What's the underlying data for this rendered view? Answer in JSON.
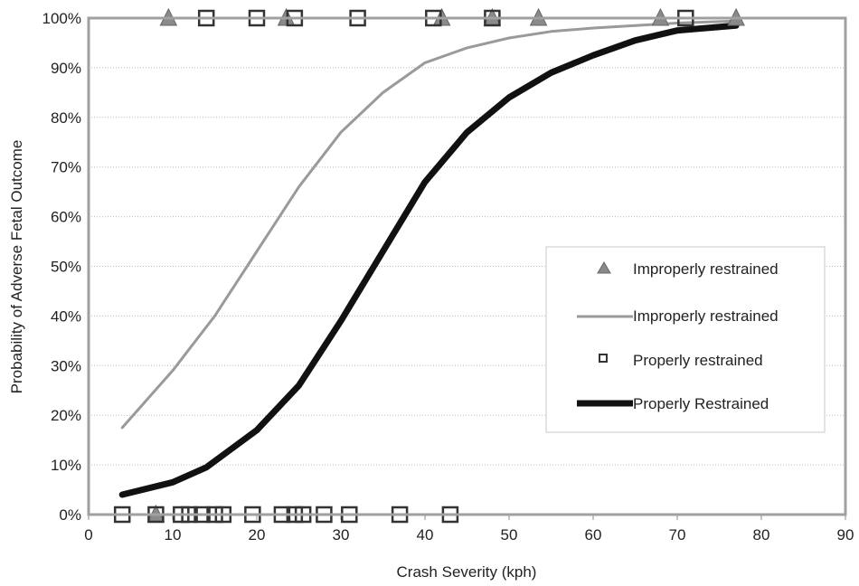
{
  "chart_data": {
    "type": "line",
    "title": "",
    "xlabel": "Crash Severity (kph)",
    "ylabel": "Probability of Adverse Fetal Outcome",
    "xlim": [
      0,
      90
    ],
    "ylim": [
      0,
      100
    ],
    "x_ticks": [
      0,
      10,
      20,
      30,
      40,
      50,
      60,
      70,
      80,
      90
    ],
    "y_ticks": [
      0,
      10,
      20,
      30,
      40,
      50,
      60,
      70,
      80,
      90,
      100
    ],
    "x_tick_labels": [
      "0",
      "10",
      "20",
      "30",
      "40",
      "50",
      "60",
      "70",
      "80",
      "90"
    ],
    "y_tick_labels": [
      "0%",
      "10%",
      "20%",
      "30%",
      "40%",
      "50%",
      "60%",
      "70%",
      "80%",
      "90%",
      "100%"
    ],
    "grid": "horizontal dotted",
    "legend_position": "right",
    "colors": {
      "improper_marker": "#8a8a8a",
      "improper_line": "#9a9a9a",
      "proper_marker": "#333333",
      "proper_line": "#111111",
      "plot_border": "#a0a0a0"
    },
    "series": [
      {
        "name": "Improperly restrained",
        "kind": "scatter",
        "marker": "triangle",
        "points": [
          {
            "x": 9.5,
            "y": 100
          },
          {
            "x": 23.5,
            "y": 100
          },
          {
            "x": 42,
            "y": 100
          },
          {
            "x": 48,
            "y": 100
          },
          {
            "x": 53.5,
            "y": 100
          },
          {
            "x": 68,
            "y": 100
          },
          {
            "x": 77,
            "y": 100
          },
          {
            "x": 8,
            "y": 0
          }
        ]
      },
      {
        "name": "Improperly restrained",
        "kind": "line",
        "points": [
          {
            "x": 4,
            "y": 17.5
          },
          {
            "x": 10,
            "y": 29
          },
          {
            "x": 15,
            "y": 40
          },
          {
            "x": 20,
            "y": 53
          },
          {
            "x": 25,
            "y": 66
          },
          {
            "x": 30,
            "y": 77
          },
          {
            "x": 35,
            "y": 85
          },
          {
            "x": 40,
            "y": 91
          },
          {
            "x": 45,
            "y": 94
          },
          {
            "x": 50,
            "y": 96
          },
          {
            "x": 55,
            "y": 97.3
          },
          {
            "x": 60,
            "y": 98
          },
          {
            "x": 65,
            "y": 98.5
          },
          {
            "x": 70,
            "y": 99
          },
          {
            "x": 77,
            "y": 99.4
          }
        ]
      },
      {
        "name": "Properly restrained",
        "kind": "scatter",
        "marker": "square",
        "points": [
          {
            "x": 14,
            "y": 100
          },
          {
            "x": 20,
            "y": 100
          },
          {
            "x": 24.5,
            "y": 100
          },
          {
            "x": 32,
            "y": 100
          },
          {
            "x": 41,
            "y": 100
          },
          {
            "x": 48,
            "y": 100
          },
          {
            "x": 71,
            "y": 100
          },
          {
            "x": 4,
            "y": 0
          },
          {
            "x": 8,
            "y": 0
          },
          {
            "x": 11,
            "y": 0
          },
          {
            "x": 12,
            "y": 0
          },
          {
            "x": 13.5,
            "y": 0
          },
          {
            "x": 15,
            "y": 0
          },
          {
            "x": 16,
            "y": 0
          },
          {
            "x": 19.5,
            "y": 0
          },
          {
            "x": 23,
            "y": 0
          },
          {
            "x": 24.5,
            "y": 0
          },
          {
            "x": 25.5,
            "y": 0
          },
          {
            "x": 28,
            "y": 0
          },
          {
            "x": 31,
            "y": 0
          },
          {
            "x": 37,
            "y": 0
          },
          {
            "x": 43,
            "y": 0
          }
        ]
      },
      {
        "name": "Properly Restrained",
        "kind": "line",
        "points": [
          {
            "x": 4,
            "y": 4
          },
          {
            "x": 10,
            "y": 6.5
          },
          {
            "x": 14,
            "y": 9.5
          },
          {
            "x": 20,
            "y": 17
          },
          {
            "x": 25,
            "y": 26
          },
          {
            "x": 30,
            "y": 39
          },
          {
            "x": 35,
            "y": 53
          },
          {
            "x": 40,
            "y": 67
          },
          {
            "x": 45,
            "y": 77
          },
          {
            "x": 50,
            "y": 84
          },
          {
            "x": 55,
            "y": 89
          },
          {
            "x": 60,
            "y": 92.5
          },
          {
            "x": 65,
            "y": 95.5
          },
          {
            "x": 70,
            "y": 97.5
          },
          {
            "x": 77,
            "y": 98.5
          }
        ]
      }
    ]
  }
}
